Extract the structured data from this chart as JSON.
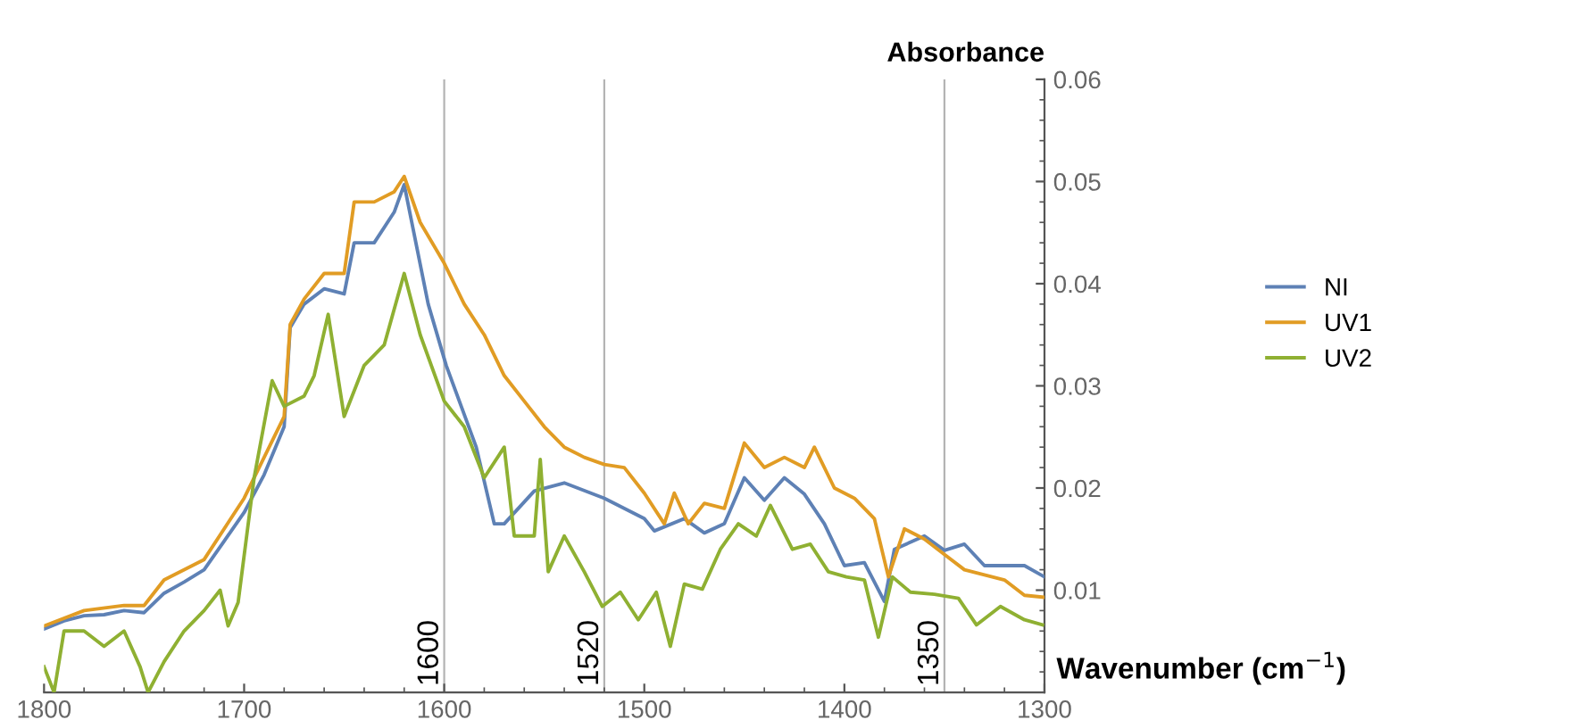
{
  "chart_data": {
    "type": "line",
    "xlabel": "Wavenumber (cm$^{−1}$)",
    "ylabel": "Absorbance",
    "xlim": [
      1800,
      1300
    ],
    "ylim": [
      0,
      0.06
    ],
    "xticks": [
      1800,
      1700,
      1600,
      1500,
      1400,
      1300
    ],
    "yticks": [
      0.01,
      0.02,
      0.03,
      0.04,
      0.05,
      0.06
    ],
    "grid": false,
    "legend": "right",
    "line_style": "solid",
    "marker": "none",
    "ref_lines": [
      {
        "axis": "x",
        "value": 1600,
        "label": "1600",
        "color": "#b4b4b4"
      },
      {
        "axis": "x",
        "value": 1520,
        "label": "1520",
        "color": "#b4b4b4"
      },
      {
        "axis": "x",
        "value": 1350,
        "label": "1350",
        "color": "#b4b4b4"
      }
    ],
    "series": [
      {
        "name": "NI",
        "color": "#5e81b5",
        "x": [
          1800,
          1790,
          1780,
          1770,
          1760,
          1750,
          1740,
          1730,
          1720,
          1710,
          1700,
          1690,
          1680,
          1677,
          1670,
          1660,
          1650,
          1645,
          1635,
          1625,
          1620,
          1608,
          1599,
          1584,
          1575,
          1570,
          1555,
          1540,
          1520,
          1500,
          1495,
          1480,
          1470,
          1460,
          1450,
          1440,
          1430,
          1420,
          1410,
          1400,
          1390,
          1380,
          1375,
          1360,
          1350,
          1340,
          1330,
          1310,
          1300
        ],
        "values": [
          0.0062,
          0.007,
          0.0075,
          0.0076,
          0.008,
          0.0078,
          0.0097,
          0.0108,
          0.012,
          0.0148,
          0.0176,
          0.0213,
          0.026,
          0.0357,
          0.038,
          0.0395,
          0.039,
          0.044,
          0.044,
          0.047,
          0.0497,
          0.038,
          0.032,
          0.024,
          0.0165,
          0.0165,
          0.0197,
          0.0205,
          0.019,
          0.017,
          0.0158,
          0.017,
          0.0156,
          0.0165,
          0.021,
          0.0188,
          0.021,
          0.0194,
          0.0165,
          0.0124,
          0.0127,
          0.0089,
          0.014,
          0.0153,
          0.0139,
          0.0145,
          0.0124,
          0.0124,
          0.0113
        ]
      },
      {
        "name": "UV1",
        "color": "#e19c24",
        "x": [
          1800,
          1780,
          1760,
          1750,
          1740,
          1720,
          1700,
          1690,
          1680,
          1677,
          1670,
          1660,
          1650,
          1645,
          1635,
          1625,
          1620,
          1612,
          1600,
          1590,
          1580,
          1570,
          1560,
          1550,
          1540,
          1530,
          1520,
          1510,
          1500,
          1490,
          1485,
          1478,
          1470,
          1460,
          1450,
          1440,
          1430,
          1420,
          1415,
          1405,
          1395,
          1385,
          1378,
          1370,
          1360,
          1350,
          1340,
          1320,
          1310,
          1300
        ],
        "values": [
          0.0065,
          0.008,
          0.0085,
          0.0085,
          0.011,
          0.013,
          0.019,
          0.023,
          0.027,
          0.036,
          0.0385,
          0.041,
          0.041,
          0.048,
          0.048,
          0.049,
          0.0505,
          0.046,
          0.042,
          0.038,
          0.035,
          0.031,
          0.0285,
          0.026,
          0.024,
          0.023,
          0.0223,
          0.022,
          0.0195,
          0.0165,
          0.0195,
          0.0165,
          0.0185,
          0.018,
          0.0244,
          0.022,
          0.023,
          0.022,
          0.024,
          0.02,
          0.019,
          0.017,
          0.0113,
          0.016,
          0.015,
          0.0135,
          0.012,
          0.011,
          0.0095,
          0.0093
        ]
      },
      {
        "name": "UV2",
        "color": "#8fb032",
        "x": [
          1800,
          1795,
          1790,
          1780,
          1770,
          1760,
          1752,
          1748,
          1740,
          1730,
          1720,
          1712,
          1708,
          1703,
          1695,
          1686,
          1680,
          1670,
          1665,
          1658,
          1650,
          1640,
          1630,
          1620,
          1612,
          1600,
          1590,
          1580,
          1570,
          1565,
          1555,
          1552,
          1548,
          1540,
          1530,
          1521,
          1512,
          1503,
          1494,
          1487,
          1480,
          1471,
          1462,
          1453,
          1444,
          1437,
          1426,
          1417,
          1408,
          1399,
          1390,
          1383,
          1376,
          1367,
          1355,
          1343,
          1334,
          1322,
          1310,
          1301
        ],
        "values": [
          0.0025,
          0.0,
          0.006,
          0.006,
          0.0045,
          0.006,
          0.0025,
          0.0,
          0.003,
          0.006,
          0.008,
          0.01,
          0.0065,
          0.0088,
          0.021,
          0.0305,
          0.028,
          0.029,
          0.031,
          0.037,
          0.027,
          0.032,
          0.034,
          0.041,
          0.035,
          0.0285,
          0.026,
          0.021,
          0.024,
          0.0153,
          0.0153,
          0.0228,
          0.0118,
          0.0153,
          0.0118,
          0.0084,
          0.0098,
          0.0071,
          0.0098,
          0.0045,
          0.0106,
          0.0101,
          0.014,
          0.0165,
          0.0153,
          0.0183,
          0.014,
          0.0145,
          0.0118,
          0.0113,
          0.011,
          0.0054,
          0.0113,
          0.0098,
          0.0096,
          0.0092,
          0.0066,
          0.0084,
          0.0071,
          0.0066
        ]
      }
    ]
  }
}
